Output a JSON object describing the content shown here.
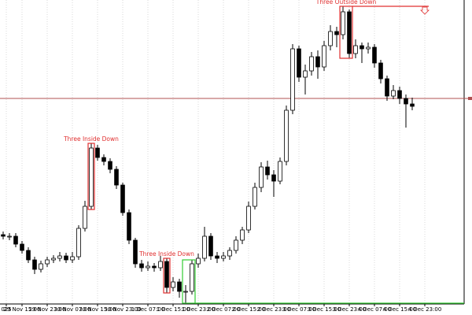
{
  "chart_data": {
    "type": "candlestick",
    "open": [
      102,
      100,
      100,
      90,
      82,
      70,
      58,
      65,
      70,
      72,
      75,
      70,
      74,
      110,
      138,
      212,
      200,
      195,
      185,
      165,
      130,
      95,
      65,
      60,
      62,
      60,
      68,
      35,
      42,
      30,
      30,
      65,
      72,
      100,
      75,
      72,
      75,
      82,
      95,
      108,
      138,
      162,
      188,
      178,
      170,
      195,
      260,
      338,
      302,
      310,
      328,
      315,
      342,
      360,
      356,
      385,
      332,
      342,
      338,
      340,
      320,
      300,
      278,
      285,
      275,
      268
    ],
    "high": [
      106,
      104,
      104,
      94,
      86,
      74,
      69,
      74,
      76,
      80,
      79,
      80,
      114,
      145,
      218,
      216,
      204,
      199,
      189,
      168,
      134,
      98,
      70,
      68,
      66,
      75,
      72,
      48,
      46,
      38,
      70,
      78,
      112,
      104,
      80,
      80,
      86,
      100,
      112,
      144,
      168,
      194,
      196,
      184,
      200,
      266,
      344,
      342,
      318,
      334,
      336,
      348,
      368,
      366,
      392,
      388,
      350,
      346,
      346,
      344,
      324,
      304,
      292,
      290,
      280,
      276
    ],
    "low": [
      96,
      95,
      86,
      78,
      66,
      52,
      54,
      61,
      66,
      68,
      66,
      66,
      70,
      106,
      134,
      196,
      190,
      180,
      160,
      126,
      90,
      60,
      55,
      56,
      55,
      56,
      28,
      30,
      22,
      15,
      26,
      60,
      68,
      70,
      66,
      68,
      70,
      78,
      90,
      104,
      134,
      156,
      172,
      150,
      166,
      190,
      255,
      296,
      280,
      304,
      300,
      310,
      336,
      340,
      350,
      326,
      326,
      320,
      332,
      314,
      294,
      272,
      274,
      268,
      238,
      260
    ],
    "close": [
      100,
      100,
      90,
      82,
      70,
      58,
      65,
      70,
      72,
      75,
      70,
      74,
      110,
      138,
      212,
      200,
      195,
      185,
      165,
      130,
      95,
      65,
      60,
      62,
      60,
      68,
      35,
      42,
      30,
      30,
      65,
      72,
      100,
      75,
      72,
      75,
      82,
      95,
      108,
      138,
      162,
      188,
      178,
      170,
      195,
      260,
      338,
      302,
      310,
      328,
      315,
      342,
      360,
      356,
      385,
      332,
      342,
      338,
      340,
      320,
      300,
      278,
      285,
      275,
      268,
      265
    ],
    "up_color": "#ffffff",
    "down_color": "#000000",
    "outline_color": "#000000",
    "xlim": [
      -0.5,
      73.25
    ],
    "ylim": [
      15,
      400
    ],
    "xticks": [
      {
        "value": 0.5,
        "label": "025"
      },
      {
        "value": 3,
        "label": "29 Nov 15:00"
      },
      {
        "value": 7,
        "label": "29 Nov 23:00"
      },
      {
        "value": 11,
        "label": "30 Nov 07:00"
      },
      {
        "value": 15,
        "label": "30 Nov 15:00"
      },
      {
        "value": 19,
        "label": "30 Nov 23:00"
      },
      {
        "value": 23,
        "label": "1 Dec 07:00"
      },
      {
        "value": 27,
        "label": "1 Dec 15:00"
      },
      {
        "value": 31,
        "label": "1 Dec 23:00"
      },
      {
        "value": 35,
        "label": "2 Dec 07:00"
      },
      {
        "value": 39,
        "label": "2 Dec 15:00"
      },
      {
        "value": 43,
        "label": "2 Dec 23:00"
      },
      {
        "value": 47,
        "label": "3 Dec 07:00"
      },
      {
        "value": 51,
        "label": "3 Dec 15:00"
      },
      {
        "value": 55,
        "label": "3 Dec 23:00"
      },
      {
        "value": 59,
        "label": "4 Dec 07:00"
      },
      {
        "value": 63,
        "label": "4 Dec 15:00"
      },
      {
        "value": 67,
        "label": "4 Dec 23:00"
      }
    ],
    "grid": true,
    "price_line": 275,
    "price_line_color": "#b05050",
    "annotations": [
      {
        "text": "Three Inside Down",
        "from": 14,
        "to": 14,
        "color": "#e03030"
      },
      {
        "text": "Three Inside Down",
        "from": 26,
        "to": 26,
        "color": "#e03030"
      },
      {
        "text": "Three Outside Down",
        "from": 54,
        "to": 55,
        "color": "#e03030"
      },
      {
        "from": 29,
        "to": 30,
        "color": "#33cc33"
      }
    ]
  }
}
